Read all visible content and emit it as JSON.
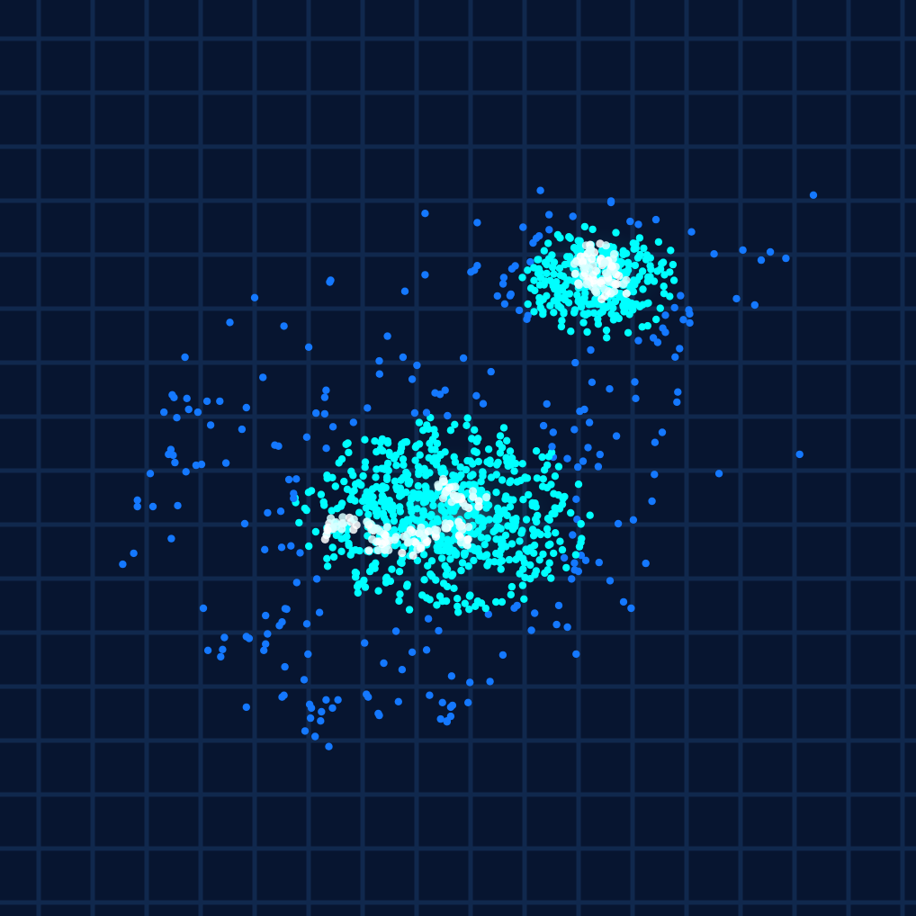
{
  "colors": {
    "background": "#071530",
    "grid": "#10284d",
    "density_low": "#1478ff",
    "density_mid": "#00ffff",
    "density_high": "#ffffff"
  },
  "chart_data": {
    "type": "scatter",
    "title": "",
    "xlabel": "",
    "ylabel": "",
    "grid": true,
    "legend": "none",
    "xlim": [
      0,
      100
    ],
    "ylim": [
      0,
      100
    ],
    "clusters": [
      {
        "center": [
          48.2,
          43.6
        ],
        "count": 780,
        "spread": [
          7.4,
          5.0
        ],
        "core_points": [
          [
            49.4,
            45.8
          ],
          [
            50.5,
            42.5
          ],
          [
            48.6,
            43.0
          ],
          [
            46.0,
            41.1
          ],
          [
            44.5,
            41.5
          ],
          [
            42.5,
            41.8
          ],
          [
            41.0,
            42.2
          ],
          [
            39.3,
            42.8
          ],
          [
            37.7,
            43.2
          ],
          [
            36.4,
            42.8
          ],
          [
            35.5,
            42.0
          ],
          [
            50.8,
            45.0
          ],
          [
            52.2,
            45.3
          ],
          [
            49.0,
            47.5
          ],
          [
            48.1,
            46.5
          ],
          [
            50.3,
            41.0
          ],
          [
            47.4,
            41.6
          ],
          [
            45.3,
            40.3
          ],
          [
            43.0,
            40.6
          ],
          [
            40.8,
            41.0
          ]
        ]
      },
      {
        "center": [
          65.6,
          69.6
        ],
        "count": 360,
        "spread": [
          4.0,
          3.0
        ],
        "core_points": [
          [
            64.2,
            70.4
          ],
          [
            65.2,
            69.5
          ],
          [
            66.3,
            69.0
          ],
          [
            67.0,
            70.2
          ],
          [
            64.6,
            71.6
          ],
          [
            66.0,
            72.5
          ],
          [
            63.5,
            69.1
          ],
          [
            65.7,
            68.2
          ],
          [
            67.8,
            68.6
          ],
          [
            64.9,
            72.9
          ],
          [
            63.3,
            71.4
          ],
          [
            66.7,
            71.1
          ]
        ]
      }
    ],
    "outliers": [
      [
        59.0,
        79.2
      ],
      [
        88.8,
        78.7
      ],
      [
        66.7,
        77.9
      ],
      [
        52.1,
        75.7
      ],
      [
        57.1,
        75.2
      ],
      [
        36.1,
        69.4
      ],
      [
        27.8,
        67.5
      ],
      [
        25.1,
        64.8
      ],
      [
        33.7,
        62.1
      ],
      [
        31.0,
        64.4
      ],
      [
        42.3,
        63.3
      ],
      [
        20.2,
        61.0
      ],
      [
        28.7,
        58.8
      ],
      [
        41.4,
        60.6
      ],
      [
        50.6,
        60.9
      ],
      [
        62.8,
        60.4
      ],
      [
        44.0,
        61.0
      ],
      [
        45.0,
        58.6
      ],
      [
        18.8,
        56.9
      ],
      [
        19.0,
        56.6
      ],
      [
        20.4,
        56.5
      ],
      [
        21.6,
        55.0
      ],
      [
        22.6,
        56.2
      ],
      [
        24.0,
        56.2
      ],
      [
        17.9,
        55.0
      ],
      [
        20.6,
        55.3
      ],
      [
        19.3,
        54.4
      ],
      [
        23.0,
        53.6
      ],
      [
        26.9,
        55.5
      ],
      [
        34.5,
        54.9
      ],
      [
        35.6,
        57.4
      ],
      [
        47.5,
        57.1
      ],
      [
        48.6,
        57.4
      ],
      [
        52.0,
        56.8
      ],
      [
        59.7,
        55.9
      ],
      [
        63.3,
        55.1
      ],
      [
        63.8,
        55.3
      ],
      [
        69.3,
        58.3
      ],
      [
        69.4,
        56.5
      ],
      [
        73.9,
        56.1
      ],
      [
        67.3,
        52.4
      ],
      [
        72.3,
        52.8
      ],
      [
        71.5,
        51.7
      ],
      [
        87.3,
        50.4
      ],
      [
        78.5,
        48.3
      ],
      [
        30.0,
        51.4
      ],
      [
        30.4,
        51.3
      ],
      [
        18.4,
        50.4
      ],
      [
        18.9,
        50.3
      ],
      [
        19.1,
        49.5
      ],
      [
        21.4,
        49.2
      ],
      [
        22.0,
        49.3
      ],
      [
        20.3,
        48.5
      ],
      [
        16.4,
        48.3
      ],
      [
        15.0,
        45.4
      ],
      [
        15.0,
        44.7
      ],
      [
        16.7,
        44.7
      ],
      [
        19.4,
        44.8
      ],
      [
        14.6,
        39.6
      ],
      [
        13.4,
        38.4
      ],
      [
        18.7,
        41.2
      ],
      [
        62.9,
        45.5
      ],
      [
        63.0,
        43.3
      ],
      [
        62.5,
        41.6
      ],
      [
        62.4,
        36.8
      ],
      [
        61.6,
        39.1
      ],
      [
        66.6,
        36.6
      ],
      [
        70.5,
        38.5
      ],
      [
        68.9,
        33.6
      ],
      [
        61.0,
        33.9
      ],
      [
        28.9,
        40.0
      ],
      [
        32.4,
        36.4
      ],
      [
        31.3,
        33.5
      ],
      [
        29.0,
        32.8
      ],
      [
        30.5,
        31.7
      ],
      [
        30.8,
        32.1
      ],
      [
        29.2,
        30.8
      ],
      [
        33.5,
        31.9
      ],
      [
        22.2,
        33.6
      ],
      [
        26.9,
        30.5
      ],
      [
        27.2,
        30.3
      ],
      [
        24.5,
        30.4
      ],
      [
        22.7,
        29.0
      ],
      [
        24.3,
        29.1
      ],
      [
        24.1,
        28.3
      ],
      [
        28.8,
        29.0
      ],
      [
        31.1,
        27.2
      ],
      [
        29.0,
        29.7
      ],
      [
        33.2,
        25.8
      ],
      [
        31.0,
        24.1
      ],
      [
        30.8,
        23.9
      ],
      [
        26.9,
        22.8
      ],
      [
        33.8,
        23.1
      ],
      [
        35.6,
        23.6
      ],
      [
        35.1,
        22.3
      ],
      [
        36.3,
        22.7
      ],
      [
        36.9,
        23.6
      ],
      [
        34.0,
        22.7
      ],
      [
        33.9,
        21.6
      ],
      [
        35.0,
        21.3
      ],
      [
        33.3,
        20.2
      ],
      [
        34.4,
        19.6
      ],
      [
        35.9,
        18.5
      ],
      [
        40.2,
        23.9
      ],
      [
        40.0,
        24.2
      ],
      [
        41.3,
        22.1
      ],
      [
        43.5,
        23.4
      ],
      [
        41.4,
        21.9
      ],
      [
        46.9,
        24.1
      ],
      [
        48.3,
        23.3
      ],
      [
        49.4,
        23.0
      ],
      [
        48.8,
        21.3
      ],
      [
        49.2,
        22.8
      ],
      [
        51.3,
        25.5
      ],
      [
        53.5,
        25.6
      ],
      [
        54.9,
        28.5
      ],
      [
        48.8,
        21.2
      ],
      [
        48.1,
        21.5
      ],
      [
        49.2,
        21.8
      ],
      [
        51.1,
        23.3
      ],
      [
        62.9,
        28.6
      ],
      [
        41.9,
        27.6
      ],
      [
        45.0,
        28.8
      ],
      [
        39.8,
        29.8
      ],
      [
        49.3,
        26.2
      ],
      [
        43.9,
        26.9
      ],
      [
        60.4,
        50.1
      ],
      [
        62.7,
        53.1
      ],
      [
        74.0,
        57.2
      ],
      [
        85.8,
        71.8
      ],
      [
        84.1,
        72.5
      ],
      [
        83.1,
        71.6
      ],
      [
        81.1,
        72.7
      ],
      [
        82.4,
        66.7
      ],
      [
        80.4,
        67.4
      ],
      [
        74.6,
        65.1
      ],
      [
        57.9,
        71.4
      ],
      [
        55.0,
        69.7
      ],
      [
        52.1,
        71.0
      ],
      [
        51.4,
        70.3
      ],
      [
        51.8,
        70.5
      ],
      [
        46.4,
        70.0
      ],
      [
        44.2,
        68.2
      ],
      [
        36.0,
        69.2
      ],
      [
        46.4,
        76.7
      ]
    ]
  }
}
